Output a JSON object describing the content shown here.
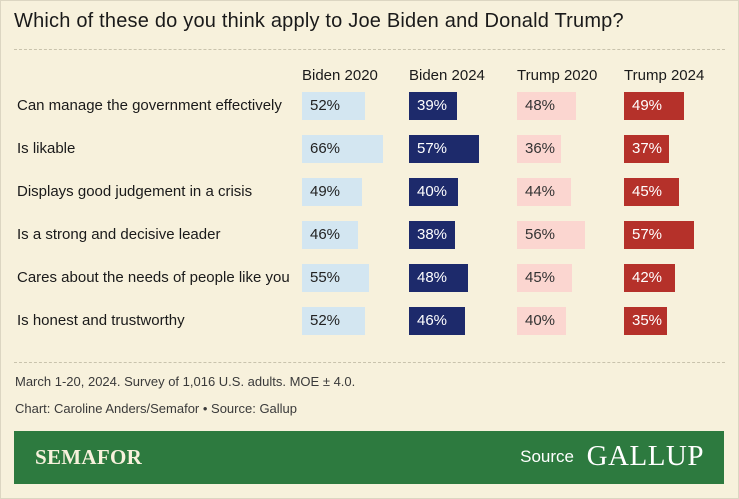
{
  "title": "Which of these do you think apply to Joe Biden and Donald Trump?",
  "colors": {
    "background": "#f7f1dc",
    "biden_2020": "#d3e6f1",
    "biden_2024": "#1d2a6b",
    "trump_2020": "#fbd6d0",
    "trump_2024": "#b5312a",
    "footer": "#2d7a3f"
  },
  "chart_data": {
    "type": "bar",
    "title": "Which of these do you think apply to Joe Biden and Donald Trump?",
    "categories": [
      "Can manage the government effectively",
      "Is likable",
      "Displays good judgement in a crisis",
      "Is a strong and decisive leader",
      "Cares about the needs of people like you",
      "Is honest and trustworthy"
    ],
    "series": [
      {
        "name": "Biden 2020",
        "values": [
          52,
          66,
          49,
          46,
          55,
          52
        ]
      },
      {
        "name": "Biden 2024",
        "values": [
          39,
          57,
          40,
          38,
          48,
          46
        ]
      },
      {
        "name": "Trump 2020",
        "values": [
          48,
          36,
          44,
          56,
          45,
          40
        ]
      },
      {
        "name": "Trump 2024",
        "values": [
          49,
          37,
          45,
          57,
          42,
          35
        ]
      }
    ],
    "value_suffix": "%"
  },
  "notes": {
    "survey": "March 1-20, 2024. Survey of 1,016 U.S. adults. MOE ± 4.0.",
    "credit": "Chart: Caroline Anders/Semafor • Source: Gallup"
  },
  "footer": {
    "brand": "SEMAFOR",
    "source_label": "Source",
    "source_brand": "GALLUP"
  }
}
